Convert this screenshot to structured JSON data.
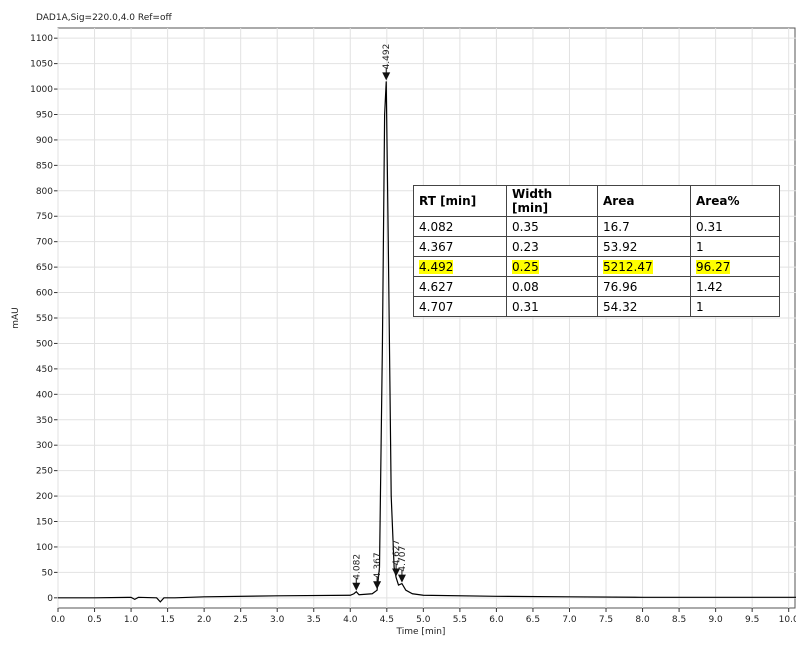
{
  "chart_data": {
    "type": "line",
    "title": "DAD1A,Sig=220.0,4.0  Ref=off",
    "x_label": "Time [min]",
    "y_label": "mAU",
    "x": [
      0,
      0.5,
      1.0,
      1.05,
      1.1,
      1.35,
      1.4,
      1.45,
      1.6,
      2.0,
      3.0,
      4.0,
      4.05,
      4.082,
      4.12,
      4.3,
      4.367,
      4.4,
      4.44,
      4.47,
      4.492,
      4.52,
      4.56,
      4.6,
      4.627,
      4.66,
      4.707,
      4.76,
      4.85,
      5.0,
      6.0,
      7.0,
      8.0,
      9.0,
      10.1
    ],
    "series": [
      {
        "color": "#000000",
        "values": [
          0,
          0,
          1,
          -3,
          1,
          0,
          -8,
          0,
          0,
          2,
          4,
          5,
          8,
          12,
          6,
          8,
          15,
          60,
          500,
          950,
          1015,
          700,
          200,
          60,
          40,
          25,
          28,
          15,
          8,
          5,
          3,
          2,
          1,
          1,
          1
        ]
      }
    ],
    "peaks": [
      {
        "x": 4.082,
        "y": 12
      },
      {
        "x": 4.367,
        "y": 15
      },
      {
        "x": 4.492,
        "y": 1015
      },
      {
        "x": 4.627,
        "y": 40
      },
      {
        "x": 4.707,
        "y": 28
      }
    ],
    "xlim": [
      0,
      10.1
    ],
    "ylim": [
      -20,
      1120
    ],
    "xticks": [
      {
        "value": 0,
        "label": "0.0"
      },
      0.5,
      {
        "value": 1,
        "label": "1.0"
      },
      1.5,
      {
        "value": 2,
        "label": "2.0"
      },
      2.5,
      {
        "value": 3,
        "label": "3.0"
      },
      3.5,
      {
        "value": 4,
        "label": "4.0"
      },
      4.5,
      {
        "value": 5,
        "label": "5.0"
      },
      5.5,
      {
        "value": 6,
        "label": "6.0"
      },
      6.5,
      {
        "value": 7,
        "label": "7.0"
      },
      7.5,
      {
        "value": 8,
        "label": "8.0"
      },
      8.5,
      {
        "value": 9,
        "label": "9.0"
      },
      9.5,
      {
        "value": 10,
        "label": "10.0"
      }
    ],
    "yticks": [
      0,
      50,
      100,
      150,
      200,
      250,
      300,
      350,
      400,
      450,
      500,
      550,
      600,
      650,
      700,
      750,
      800,
      850,
      900,
      950,
      1000,
      1050,
      1100
    ],
    "grid": true
  },
  "table": {
    "columns": [
      "RT [min]",
      "Width [min]",
      "Area",
      "Area%"
    ],
    "rows": [
      [
        4.082,
        0.35,
        16.7,
        0.31
      ],
      [
        4.367,
        0.23,
        53.92,
        1
      ],
      [
        4.492,
        0.25,
        5212.47,
        96.27
      ],
      [
        4.627,
        0.08,
        76.96,
        1.42
      ],
      [
        4.707,
        0.31,
        54.32,
        1
      ]
    ],
    "highlight_row": 2,
    "highlight_color": "#ffff00"
  }
}
